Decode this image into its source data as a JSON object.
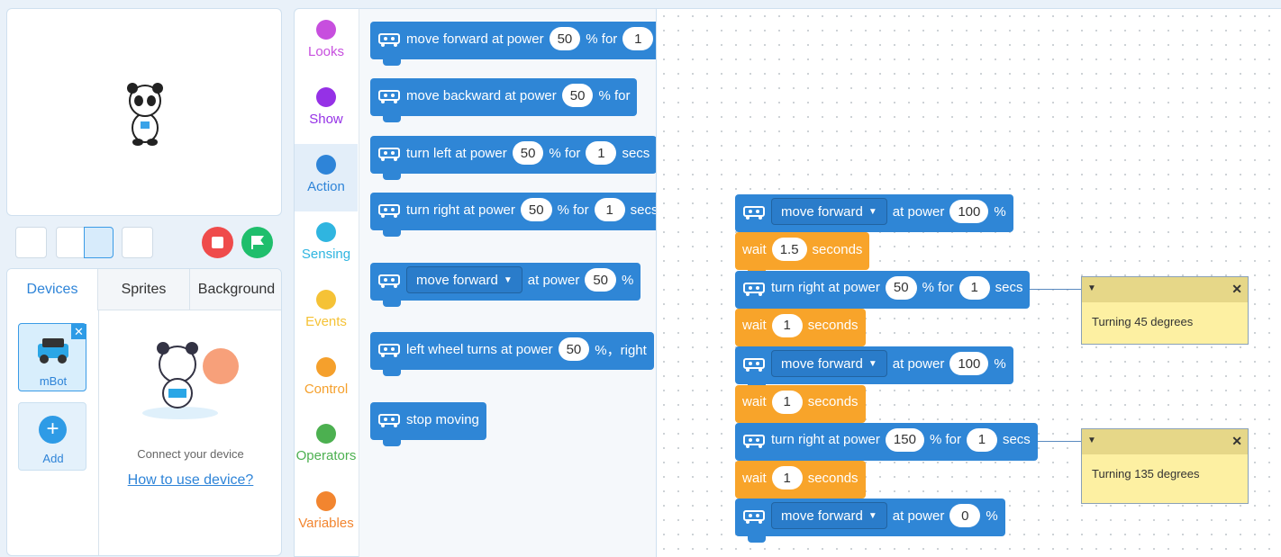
{
  "tabs": [
    "Devices",
    "Sprites",
    "Background"
  ],
  "devices": [
    {
      "label": "mBot"
    },
    {
      "label": "Add"
    }
  ],
  "connect_text": "Connect your device",
  "help_link": "How to use device?",
  "categories": [
    {
      "label": "Looks",
      "color": "#c74fde"
    },
    {
      "label": "Show",
      "color": "#9531e6"
    },
    {
      "label": "Action",
      "color": "#2e84d8"
    },
    {
      "label": "Sensing",
      "color": "#2fb5e0"
    },
    {
      "label": "Events",
      "color": "#f5c236"
    },
    {
      "label": "Control",
      "color": "#f5a02c"
    },
    {
      "label": "Operators",
      "color": "#4cb050"
    },
    {
      "label": "Variables",
      "color": "#f2852f"
    }
  ],
  "palette": {
    "blocks": [
      {
        "parts": [
          {
            "text": "move forward at power"
          },
          {
            "input": "50"
          },
          {
            "text": "% for"
          },
          {
            "input": "1"
          }
        ]
      },
      {
        "parts": [
          {
            "text": "move backward at power"
          },
          {
            "input": "50"
          },
          {
            "text": "% for"
          }
        ]
      },
      {
        "parts": [
          {
            "text": "turn left at power"
          },
          {
            "input": "50"
          },
          {
            "text": "% for"
          },
          {
            "input": "1"
          },
          {
            "text": "secs"
          }
        ]
      },
      {
        "parts": [
          {
            "text": "turn right at power"
          },
          {
            "input": "50"
          },
          {
            "text": "% for"
          },
          {
            "input": "1"
          },
          {
            "text": "secs"
          }
        ]
      },
      {
        "parts": [
          {
            "dropdown": "move forward"
          },
          {
            "text": "at power"
          },
          {
            "input": "50"
          },
          {
            "text": "%"
          }
        ]
      },
      {
        "parts": [
          {
            "text": "left wheel turns at power"
          },
          {
            "input": "50"
          },
          {
            "text": "%，right"
          }
        ]
      },
      {
        "parts": [
          {
            "text": "stop moving"
          }
        ]
      }
    ]
  },
  "script": {
    "blocks": [
      {
        "kind": "action",
        "parts": [
          {
            "dropdown": "move forward"
          },
          {
            "text": "at power"
          },
          {
            "input": "100"
          },
          {
            "text": "%"
          }
        ]
      },
      {
        "kind": "wait",
        "parts": [
          {
            "text": "wait"
          },
          {
            "input": "1.5"
          },
          {
            "text": "seconds"
          }
        ]
      },
      {
        "kind": "action",
        "parts": [
          {
            "text": "turn right at power"
          },
          {
            "input": "50"
          },
          {
            "text": "% for"
          },
          {
            "input": "1"
          },
          {
            "text": "secs"
          }
        ]
      },
      {
        "kind": "wait",
        "parts": [
          {
            "text": "wait"
          },
          {
            "input": "1"
          },
          {
            "text": "seconds"
          }
        ]
      },
      {
        "kind": "action",
        "parts": [
          {
            "dropdown": "move forward"
          },
          {
            "text": "at power"
          },
          {
            "input": "100"
          },
          {
            "text": "%"
          }
        ]
      },
      {
        "kind": "wait",
        "parts": [
          {
            "text": "wait"
          },
          {
            "input": "1"
          },
          {
            "text": "seconds"
          }
        ]
      },
      {
        "kind": "action",
        "parts": [
          {
            "text": "turn right at power"
          },
          {
            "input": "150"
          },
          {
            "text": "% for"
          },
          {
            "input": "1"
          },
          {
            "text": "secs"
          }
        ]
      },
      {
        "kind": "wait",
        "parts": [
          {
            "text": "wait"
          },
          {
            "input": "1"
          },
          {
            "text": "seconds"
          }
        ]
      },
      {
        "kind": "action",
        "parts": [
          {
            "dropdown": "move forward"
          },
          {
            "text": "at power"
          },
          {
            "input": "0"
          },
          {
            "text": "%"
          }
        ]
      }
    ]
  },
  "comments": [
    {
      "text": "Turning 45 degrees"
    },
    {
      "text": "Turning 135 degrees"
    }
  ]
}
